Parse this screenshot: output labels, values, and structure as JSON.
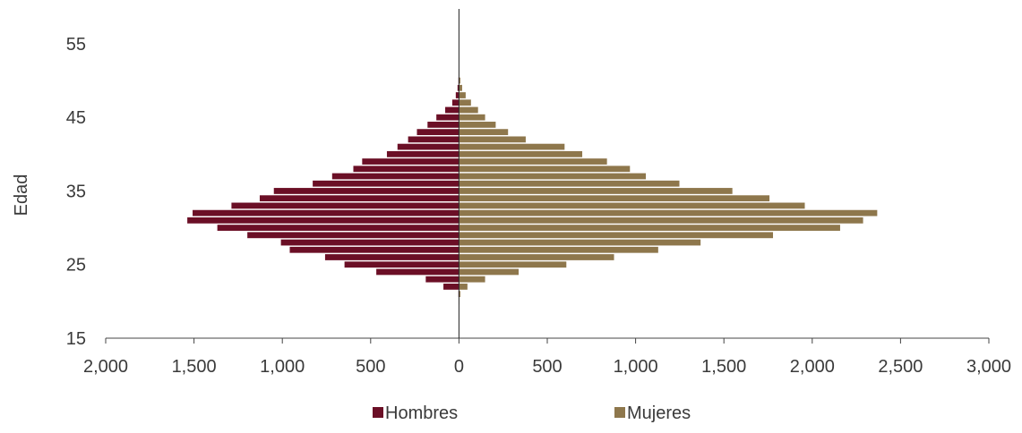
{
  "chart_data": {
    "type": "bar",
    "orientation": "horizontal",
    "subtype": "population-pyramid",
    "title": "",
    "xlabel": "",
    "ylabel": "Edad",
    "xlim": [
      -2000,
      3000
    ],
    "ylim": [
      15,
      59
    ],
    "x_ticks": [
      -2000,
      -1500,
      -1000,
      -500,
      0,
      500,
      1000,
      1500,
      2000,
      2500,
      3000
    ],
    "x_tick_labels": [
      "2,000",
      "1,500",
      "1,000",
      "500",
      "0",
      "500",
      "1,000",
      "1,500",
      "2,000",
      "2,500",
      "3,000"
    ],
    "y_ticks": [
      15,
      25,
      35,
      45,
      55
    ],
    "y_tick_labels": [
      "15",
      "25",
      "35",
      "45",
      "55"
    ],
    "ages": [
      20,
      21,
      22,
      23,
      24,
      25,
      26,
      27,
      28,
      29,
      30,
      31,
      32,
      33,
      34,
      35,
      36,
      37,
      38,
      39,
      40,
      41,
      42,
      43,
      44,
      45,
      46,
      47,
      48,
      49,
      50,
      51,
      52,
      53,
      54,
      55,
      56,
      57
    ],
    "grid": false,
    "legend_position": "bottom",
    "series": [
      {
        "name": "Hombres",
        "color": "#6b0f26",
        "values": [
          2,
          5,
          90,
          190,
          470,
          650,
          760,
          960,
          1010,
          1200,
          1370,
          1540,
          1510,
          1290,
          1130,
          1050,
          830,
          720,
          600,
          550,
          410,
          350,
          290,
          240,
          180,
          130,
          80,
          40,
          20,
          10,
          5,
          3,
          2,
          1,
          1,
          1,
          1,
          0
        ]
      },
      {
        "name": "Mujeres",
        "color": "#8e774c",
        "values": [
          5,
          10,
          50,
          150,
          340,
          610,
          880,
          1130,
          1370,
          1780,
          2160,
          2290,
          2370,
          1960,
          1760,
          1550,
          1250,
          1060,
          970,
          840,
          700,
          600,
          380,
          280,
          210,
          150,
          110,
          70,
          40,
          20,
          10,
          5,
          2,
          1,
          1,
          1,
          1,
          0
        ]
      }
    ]
  }
}
